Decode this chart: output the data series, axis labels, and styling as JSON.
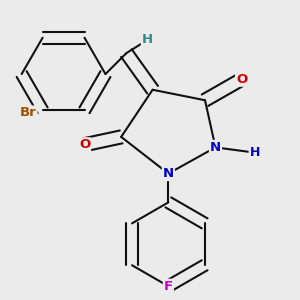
{
  "background_color": "#ebebeb",
  "atom_colors": {
    "C": "#000000",
    "H": "#2e8b8b",
    "N": "#0000cc",
    "O": "#cc0000",
    "Br": "#a05000",
    "F": "#cc00cc"
  },
  "bond_color": "#111111",
  "bond_width": 1.5,
  "font_size": 9.5,
  "figsize": [
    3.0,
    3.0
  ],
  "dpi": 100
}
